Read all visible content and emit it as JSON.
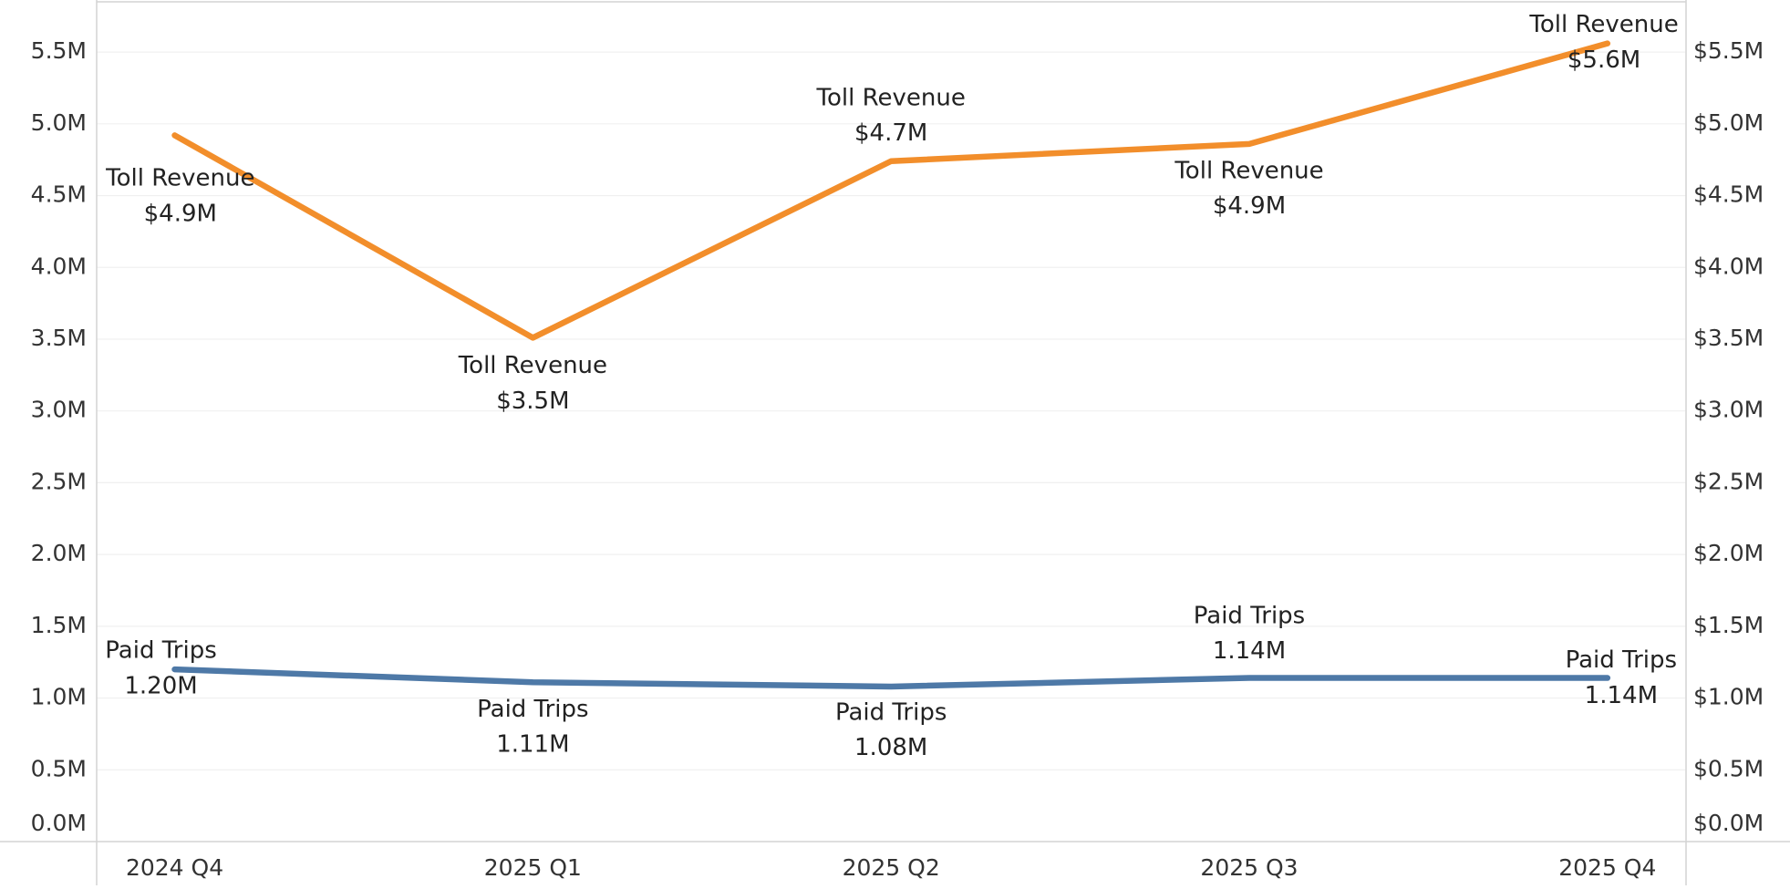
{
  "chart_data": {
    "type": "line",
    "categories": [
      "2024 Q4",
      "2025 Q1",
      "2025 Q2",
      "2025 Q3",
      "2025 Q4"
    ],
    "series": [
      {
        "name": "Paid Trips",
        "color": "#4e79a7",
        "axis": "y",
        "values": [
          1200000,
          1110000,
          1080000,
          1140000,
          1140000
        ],
        "value_labels": [
          "1.20M",
          "1.11M",
          "1.08M",
          "1.14M",
          "1.14M"
        ]
      },
      {
        "name": "Toll Revenue",
        "color": "#f28e2b",
        "axis": "y2",
        "values": [
          4920000,
          3510000,
          4740000,
          4860000,
          5560000
        ],
        "value_labels": [
          "$4.9M",
          "$3.5M",
          "$4.7M",
          "$4.9M",
          "$5.6M"
        ]
      }
    ],
    "ylim": [
      0,
      5850000
    ],
    "yticks": [
      {
        "value": 0,
        "label": "0.0M"
      },
      {
        "value": 500000,
        "label": "0.5M"
      },
      {
        "value": 1000000,
        "label": "1.0M"
      },
      {
        "value": 1500000,
        "label": "1.5M"
      },
      {
        "value": 2000000,
        "label": "2.0M"
      },
      {
        "value": 2500000,
        "label": "2.5M"
      },
      {
        "value": 3000000,
        "label": "3.0M"
      },
      {
        "value": 3500000,
        "label": "3.5M"
      },
      {
        "value": 4000000,
        "label": "4.0M"
      },
      {
        "value": 4500000,
        "label": "4.5M"
      },
      {
        "value": 5000000,
        "label": "5.0M"
      },
      {
        "value": 5500000,
        "label": "5.5M"
      }
    ],
    "y2lim": [
      0,
      5850000
    ],
    "y2ticks": [
      {
        "value": 0,
        "label": "$0.0M"
      },
      {
        "value": 500000,
        "label": "$0.5M"
      },
      {
        "value": 1000000,
        "label": "$1.0M"
      },
      {
        "value": 1500000,
        "label": "$1.5M"
      },
      {
        "value": 2000000,
        "label": "$2.0M"
      },
      {
        "value": 2500000,
        "label": "$2.5M"
      },
      {
        "value": 3000000,
        "label": "$3.0M"
      },
      {
        "value": 3500000,
        "label": "$3.5M"
      },
      {
        "value": 4000000,
        "label": "$4.0M"
      },
      {
        "value": 4500000,
        "label": "$4.5M"
      },
      {
        "value": 5000000,
        "label": "$5.0M"
      },
      {
        "value": 5500000,
        "label": "$5.5M"
      }
    ],
    "grid": true
  }
}
